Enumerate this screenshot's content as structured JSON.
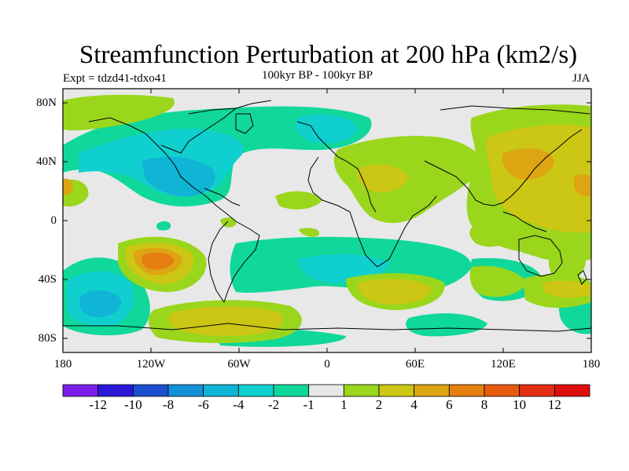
{
  "title": "Streamfunction Perturbation at 200 hPa (km2/s)",
  "subtitle_left": "Expt = tdzd41-tdxo41",
  "subtitle_center": "100kyr BP - 100kyr BP",
  "subtitle_right": "JJA",
  "lat_labels": [
    "80N",
    "40N",
    "0",
    "40S",
    "80S"
  ],
  "lon_labels": [
    "180",
    "120W",
    "60W",
    "0",
    "60E",
    "120E",
    "180"
  ],
  "colorbar": {
    "colors": [
      "#7b1fe8",
      "#2a18d8",
      "#1b4fd0",
      "#1490d8",
      "#10b4d4",
      "#10d0cf",
      "#10d79a",
      "#e8e8e8",
      "#9ad61c",
      "#ccc614",
      "#dda512",
      "#e57f10",
      "#e85a10",
      "#e42e14",
      "#e00d0d"
    ],
    "labels": [
      "-12",
      "-10",
      "-8",
      "-6",
      "-4",
      "-2",
      "-1",
      "1",
      "2",
      "4",
      "6",
      "8",
      "10",
      "12"
    ]
  },
  "field_colors": {
    "background": "#e8e8e8",
    "neg1": "#10d79a",
    "neg2": "#10d0cf",
    "neg4": "#10b4d4",
    "pos1": "#9ad61c",
    "pos2": "#ccc614",
    "pos4": "#dda512",
    "pos6": "#e57f10"
  }
}
